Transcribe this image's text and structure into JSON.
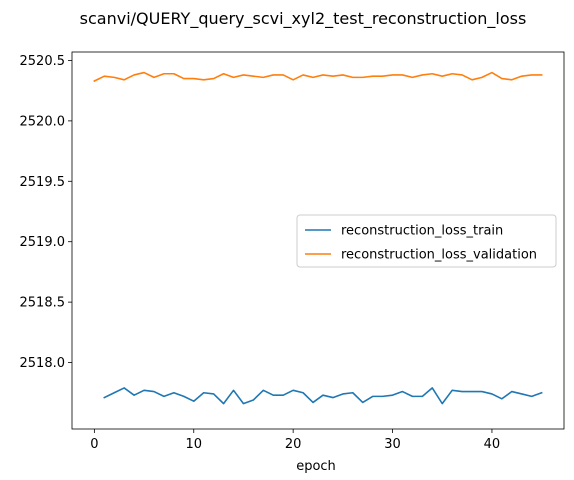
{
  "chart_data": {
    "type": "line",
    "title": "scanvi/QUERY_query_scvi_xyl2_test_reconstruction_loss",
    "xlabel": "epoch",
    "ylabel": "",
    "xlim": [
      -2.25,
      47.25
    ],
    "ylim": [
      2517.45,
      2520.57
    ],
    "xticks": [
      0,
      10,
      20,
      30,
      40
    ],
    "yticks": [
      2518.0,
      2518.5,
      2519.0,
      2519.5,
      2520.0,
      2520.5
    ],
    "ytick_labels": [
      "2518.0",
      "2518.5",
      "2519.0",
      "2519.5",
      "2520.0",
      "2520.5"
    ],
    "grid": false,
    "legend_position": "center-right",
    "series": [
      {
        "name": "reconstruction_loss_train",
        "color": "#1f77b4",
        "x": [
          1,
          2,
          3,
          4,
          5,
          6,
          7,
          8,
          9,
          10,
          11,
          12,
          13,
          14,
          15,
          16,
          17,
          18,
          19,
          20,
          21,
          22,
          23,
          24,
          25,
          26,
          27,
          28,
          29,
          30,
          31,
          32,
          33,
          34,
          35,
          36,
          37,
          38,
          39,
          40,
          41,
          42,
          43,
          44,
          45
        ],
        "values": [
          2517.71,
          2517.75,
          2517.79,
          2517.73,
          2517.77,
          2517.76,
          2517.72,
          2517.75,
          2517.72,
          2517.68,
          2517.75,
          2517.74,
          2517.66,
          2517.77,
          2517.66,
          2517.69,
          2517.77,
          2517.73,
          2517.73,
          2517.77,
          2517.75,
          2517.67,
          2517.73,
          2517.71,
          2517.74,
          2517.75,
          2517.67,
          2517.72,
          2517.72,
          2517.73,
          2517.76,
          2517.72,
          2517.72,
          2517.79,
          2517.66,
          2517.77,
          2517.76,
          2517.76,
          2517.76,
          2517.74,
          2517.7,
          2517.76,
          2517.74,
          2517.72,
          2517.75
        ]
      },
      {
        "name": "reconstruction_loss_validation",
        "color": "#ff7f0e",
        "x": [
          0,
          1,
          2,
          3,
          4,
          5,
          6,
          7,
          8,
          9,
          10,
          11,
          12,
          13,
          14,
          15,
          16,
          17,
          18,
          19,
          20,
          21,
          22,
          23,
          24,
          25,
          26,
          27,
          28,
          29,
          30,
          31,
          32,
          33,
          34,
          35,
          36,
          37,
          38,
          39,
          40,
          41,
          42,
          43,
          44,
          45
        ],
        "values": [
          2520.33,
          2520.37,
          2520.36,
          2520.34,
          2520.38,
          2520.4,
          2520.36,
          2520.39,
          2520.39,
          2520.35,
          2520.35,
          2520.34,
          2520.35,
          2520.39,
          2520.36,
          2520.38,
          2520.37,
          2520.36,
          2520.38,
          2520.38,
          2520.34,
          2520.38,
          2520.36,
          2520.38,
          2520.37,
          2520.38,
          2520.36,
          2520.36,
          2520.37,
          2520.37,
          2520.38,
          2520.38,
          2520.36,
          2520.38,
          2520.39,
          2520.37,
          2520.39,
          2520.38,
          2520.34,
          2520.36,
          2520.4,
          2520.35,
          2520.34,
          2520.37,
          2520.38,
          2520.38
        ]
      }
    ]
  }
}
